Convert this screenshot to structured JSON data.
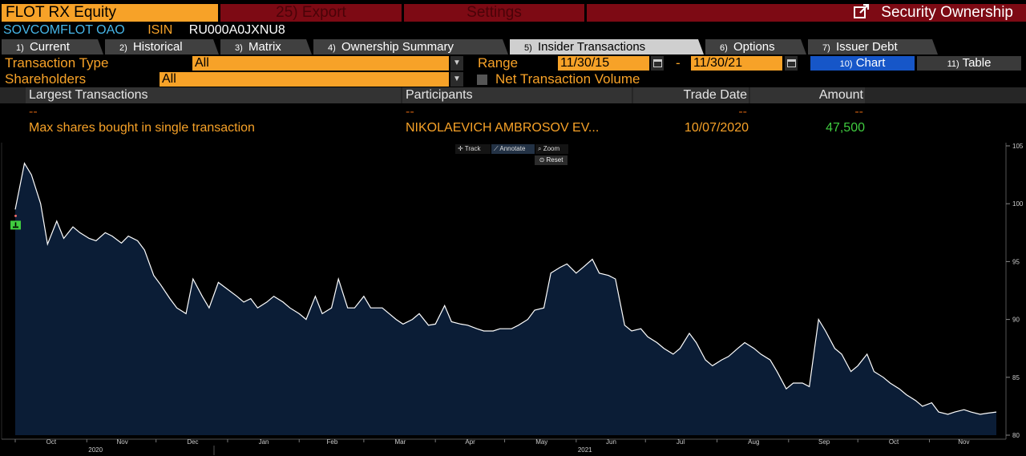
{
  "title_bar": {
    "ticker": "FLOT RX Equity",
    "export_label": "25) Export",
    "settings_label": "Settings",
    "function_name": "Security Ownership"
  },
  "security": {
    "name": "SOVCOMFLOT OAO",
    "isin_label": "ISIN",
    "isin_value": "RU000A0JXNU8"
  },
  "tabs": [
    {
      "num": "1)",
      "label": "Current"
    },
    {
      "num": "2)",
      "label": "Historical"
    },
    {
      "num": "3)",
      "label": "Matrix"
    },
    {
      "num": "4)",
      "label": "Ownership Summary"
    },
    {
      "num": "5)",
      "label": "Insider Transactions",
      "active": true
    },
    {
      "num": "6)",
      "label": "Options"
    },
    {
      "num": "7)",
      "label": "Issuer Debt"
    }
  ],
  "filters": {
    "transaction_type_label": "Transaction Type",
    "transaction_type_value": "All",
    "shareholders_label": "Shareholders",
    "shareholders_value": "All",
    "range_label": "Range",
    "range_start": "11/30/15",
    "range_sep": "-",
    "range_end": "11/30/21",
    "net_volume_label": "Net Transaction Volume",
    "net_volume_checked": false,
    "chart_btn_num": "10)",
    "chart_btn_label": "Chart",
    "table_btn_num": "11)",
    "table_btn_label": "Table"
  },
  "largest_transactions": {
    "headers": {
      "type": "Largest Transactions",
      "participants": "Participants",
      "trade_date": "Trade Date",
      "amount": "Amount"
    },
    "dash_row": {
      "type": "--",
      "participants": "--",
      "trade_date": "--",
      "amount": "--"
    },
    "rows": [
      {
        "type": "Max shares bought in single transaction",
        "participants": "NIKOLAEVICH AMBROSOV EV...",
        "trade_date": "10/07/2020",
        "amount": "47,500"
      }
    ]
  },
  "chart_tools": {
    "track": "Track",
    "annotate": "Annotate",
    "zoom": "Zoom",
    "reset": "Reset"
  },
  "colors": {
    "orange": "#f7a228",
    "dark_red": "#7d0a14",
    "cyan": "#46b6e8",
    "green": "#3fcb3f",
    "area_fill": "#0b1d36",
    "chart_blue": "#1656c8"
  },
  "chart_data": {
    "type": "area",
    "ylim": [
      80,
      105
    ],
    "yticks": [
      80,
      85,
      90,
      95,
      100,
      105
    ],
    "x_month_labels": [
      "Oct",
      "Nov",
      "Dec",
      "Jan",
      "Feb",
      "Mar",
      "Apr",
      "May",
      "Jun",
      "Jul",
      "Aug",
      "Sep",
      "Oct",
      "Nov"
    ],
    "year_labels": [
      {
        "label": "2020",
        "month_index": 1
      },
      {
        "label": "2021",
        "month_index": 8
      }
    ],
    "x": [
      "2020-10-01",
      "2020-10-05",
      "2020-10-08",
      "2020-10-12",
      "2020-10-15",
      "2020-10-19",
      "2020-10-22",
      "2020-10-26",
      "2020-10-29",
      "2020-11-02",
      "2020-11-05",
      "2020-11-09",
      "2020-11-12",
      "2020-11-16",
      "2020-11-19",
      "2020-11-23",
      "2020-11-26",
      "2020-11-30",
      "2020-12-03",
      "2020-12-07",
      "2020-12-10",
      "2020-12-14",
      "2020-12-17",
      "2020-12-21",
      "2020-12-24",
      "2020-12-28",
      "2021-01-05",
      "2021-01-08",
      "2021-01-11",
      "2021-01-14",
      "2021-01-18",
      "2021-01-21",
      "2021-01-25",
      "2021-01-28",
      "2021-02-01",
      "2021-02-04",
      "2021-02-08",
      "2021-02-11",
      "2021-02-15",
      "2021-02-18",
      "2021-02-22",
      "2021-02-25",
      "2021-03-01",
      "2021-03-04",
      "2021-03-09",
      "2021-03-12",
      "2021-03-15",
      "2021-03-18",
      "2021-03-22",
      "2021-03-25",
      "2021-03-29",
      "2021-04-01",
      "2021-04-05",
      "2021-04-08",
      "2021-04-12",
      "2021-04-15",
      "2021-04-19",
      "2021-04-22",
      "2021-04-26",
      "2021-04-29",
      "2021-05-04",
      "2021-05-07",
      "2021-05-11",
      "2021-05-14",
      "2021-05-18",
      "2021-05-21",
      "2021-05-25",
      "2021-05-28",
      "2021-06-01",
      "2021-06-04",
      "2021-06-08",
      "2021-06-11",
      "2021-06-15",
      "2021-06-18",
      "2021-06-22",
      "2021-06-25",
      "2021-06-29",
      "2021-07-02",
      "2021-07-06",
      "2021-07-09",
      "2021-07-13",
      "2021-07-16",
      "2021-07-20",
      "2021-07-23",
      "2021-07-27",
      "2021-07-30",
      "2021-08-03",
      "2021-08-06",
      "2021-08-10",
      "2021-08-13",
      "2021-08-17",
      "2021-08-20",
      "2021-08-24",
      "2021-08-27",
      "2021-08-31",
      "2021-09-03",
      "2021-09-07",
      "2021-09-10",
      "2021-09-14",
      "2021-09-17",
      "2021-09-21",
      "2021-09-24",
      "2021-09-28",
      "2021-10-01",
      "2021-10-05",
      "2021-10-08",
      "2021-10-12",
      "2021-10-15",
      "2021-10-19",
      "2021-10-22",
      "2021-10-26",
      "2021-10-29",
      "2021-11-02",
      "2021-11-05",
      "2021-11-09",
      "2021-11-12",
      "2021-11-16",
      "2021-11-19",
      "2021-11-23",
      "2021-11-26",
      "2021-11-30"
    ],
    "series": [
      {
        "values": [
          99.5,
          103.5,
          102.5,
          100.0,
          96.5,
          98.5,
          97.0,
          98.0,
          97.5,
          97.0,
          96.8,
          97.5,
          97.2,
          96.6,
          97.2,
          96.8,
          96.0,
          93.8,
          93.0,
          91.8,
          91.0,
          90.5,
          93.5,
          92.0,
          91.0,
          93.2,
          92.0,
          91.5,
          91.8,
          91.0,
          91.5,
          92.0,
          91.5,
          91.0,
          90.5,
          90.0,
          92.0,
          90.5,
          91.0,
          93.5,
          91.0,
          91.0,
          92.0,
          91.0,
          91.0,
          90.5,
          90.0,
          89.6,
          90.0,
          90.5,
          89.5,
          89.6,
          91.2,
          89.8,
          89.6,
          89.5,
          89.2,
          89.0,
          89.0,
          89.2,
          89.2,
          89.5,
          90.0,
          90.8,
          91.0,
          94.0,
          94.5,
          94.8,
          94.0,
          94.5,
          95.2,
          94.0,
          93.8,
          93.5,
          89.5,
          89.0,
          89.2,
          88.5,
          88.0,
          87.5,
          87.0,
          87.5,
          88.8,
          88.0,
          86.5,
          86.0,
          86.5,
          86.8,
          87.5,
          88.0,
          87.5,
          87.0,
          86.5,
          85.5,
          84.0,
          84.5,
          84.5,
          84.2,
          90.0,
          89.0,
          87.5,
          87.0,
          85.5,
          86.0,
          87.0,
          85.5,
          85.0,
          84.5,
          84.0,
          83.5,
          83.0,
          82.5,
          82.8,
          82.0,
          81.8,
          82.0,
          82.2,
          82.0,
          81.8,
          81.9,
          82.0
        ]
      }
    ]
  }
}
